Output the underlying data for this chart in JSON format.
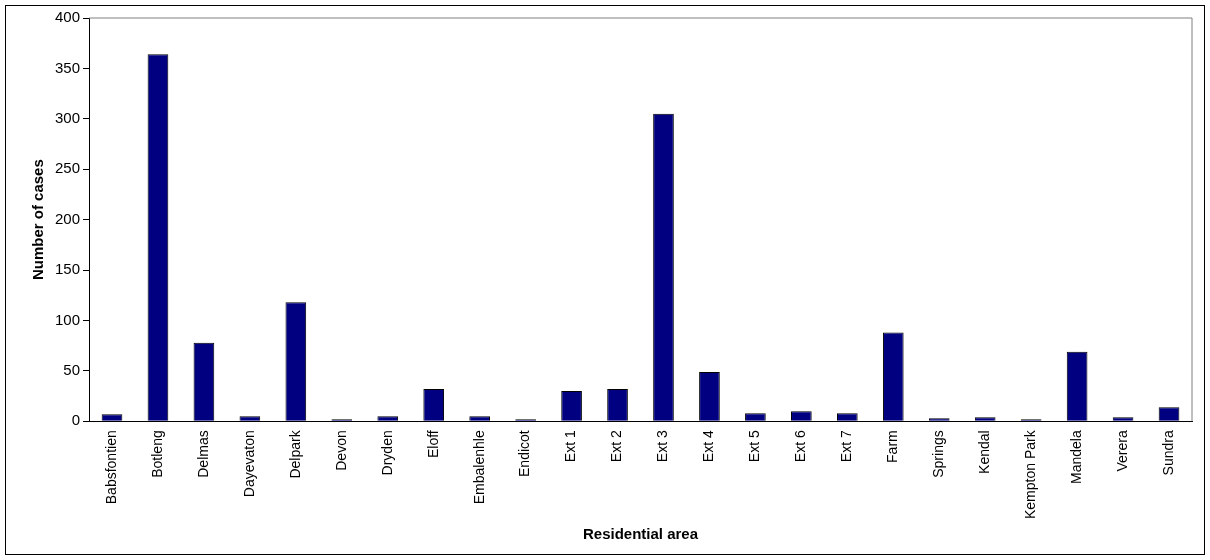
{
  "chart_data": {
    "type": "bar",
    "xlabel": "Residential area",
    "ylabel": "Number of cases",
    "categories": [
      "Babsfontien",
      "Botleng",
      "Delmas",
      "Dayevaton",
      "Delpark",
      "Devon",
      "Dryden",
      "Eloff",
      "Embalenhle",
      "Endicot",
      "Ext 1",
      "Ext 2",
      "Ext 3",
      "Ext 4",
      "Ext 5",
      "Ext 6",
      "Ext 7",
      "Farm",
      "Springs",
      "Kendal",
      "Kempton Park",
      "Mandela",
      "Verera",
      "Sundra"
    ],
    "values": [
      7,
      364,
      78,
      5,
      118,
      2,
      5,
      32,
      5,
      2,
      30,
      32,
      305,
      49,
      8,
      10,
      8,
      88,
      3,
      4,
      2,
      69,
      4,
      14
    ],
    "color": "#000080",
    "ylim": [
      0,
      400
    ],
    "yticks": [
      0,
      50,
      100,
      150,
      200,
      250,
      300,
      350,
      400
    ],
    "grid": false,
    "legend": false
  }
}
